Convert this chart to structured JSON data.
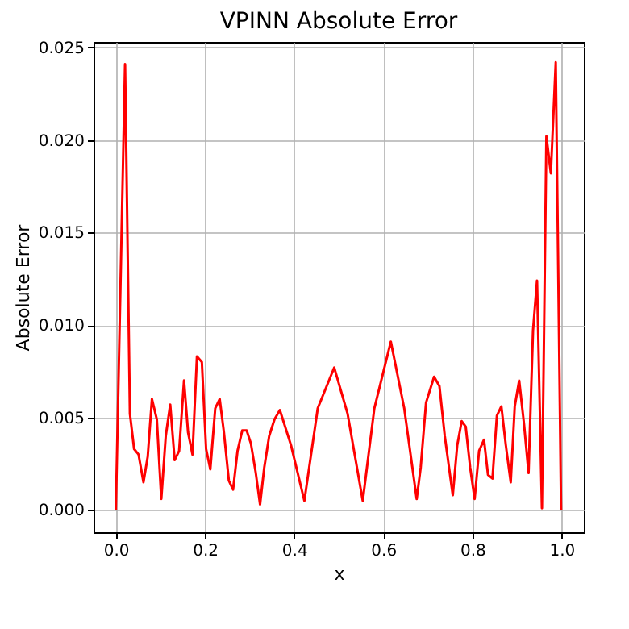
{
  "chart_data": {
    "type": "line",
    "title": "VPINN Absolute Error",
    "xlabel": "x",
    "ylabel": "Absolute Error",
    "x": [
      0,
      0.0207,
      0.0316,
      0.041,
      0.051,
      0.062,
      0.0716,
      0.081,
      0.092,
      0.102,
      0.112,
      0.122,
      0.132,
      0.142,
      0.153,
      0.162,
      0.172,
      0.182,
      0.193,
      0.2025,
      0.212,
      0.223,
      0.233,
      0.2425,
      0.2535,
      0.263,
      0.273,
      0.2836,
      0.2935,
      0.303,
      0.314,
      0.3236,
      0.333,
      0.344,
      0.356,
      0.368,
      0.393,
      0.423,
      0.453,
      0.49,
      0.52,
      0.554,
      0.58,
      0.617,
      0.647,
      0.675,
      0.684,
      0.696,
      0.714,
      0.726,
      0.738,
      0.756,
      0.766,
      0.776,
      0.785,
      0.795,
      0.805,
      0.815,
      0.826,
      0.835,
      0.845,
      0.855,
      0.865,
      0.875,
      0.886,
      0.895,
      0.905,
      0.916,
      0.926,
      0.936,
      0.945,
      0.956,
      0.966,
      0.976,
      0.987,
      0.999
    ],
    "series": [
      {
        "color": "#ff0000",
        "values": [
          0,
          0.0241,
          0.0052,
          0.0033,
          0.003,
          0.0015,
          0.0029,
          0.006,
          0.0049,
          0.0006,
          0.004,
          0.0057,
          0.0027,
          0.0032,
          0.007,
          0.0042,
          0.003,
          0.0083,
          0.008,
          0.0033,
          0.0022,
          0.0055,
          0.006,
          0.0042,
          0.0016,
          0.0011,
          0.0032,
          0.0043,
          0.0043,
          0.0036,
          0.002,
          0.0003,
          0.0023,
          0.004,
          0.0049,
          0.0054,
          0.0035,
          0.0005,
          0.0055,
          0.0077,
          0.0052,
          0.0005,
          0.0055,
          0.0091,
          0.0055,
          0.0006,
          0.0023,
          0.0058,
          0.0072,
          0.0067,
          0.004,
          0.0008,
          0.0035,
          0.0048,
          0.0045,
          0.0023,
          0.0006,
          0.0032,
          0.0038,
          0.0019,
          0.0017,
          0.0051,
          0.0056,
          0.0035,
          0.0015,
          0.0056,
          0.007,
          0.0046,
          0.002,
          0.0097,
          0.0124,
          0.0001,
          0.0202,
          0.0182,
          0.0242,
          0
        ]
      }
    ],
    "xlim": [
      -0.05,
      1.05
    ],
    "ylim": [
      -0.0012,
      0.0253
    ],
    "xticks": [
      {
        "value": 0,
        "label": "0.0"
      },
      {
        "value": 0.2,
        "label": "0.2"
      },
      {
        "value": 0.4,
        "label": "0.4"
      },
      {
        "value": 0.6,
        "label": "0.6"
      },
      {
        "value": 0.8,
        "label": "0.8"
      },
      {
        "value": 1,
        "label": "1.0"
      }
    ],
    "yticks": [
      {
        "value": 0,
        "label": "0.000"
      },
      {
        "value": 0.005,
        "label": "0.005"
      },
      {
        "value": 0.01,
        "label": "0.010"
      },
      {
        "value": 0.015,
        "label": "0.015"
      },
      {
        "value": 0.02,
        "label": "0.020"
      },
      {
        "value": 0.025,
        "label": "0.025"
      }
    ],
    "grid": true
  }
}
